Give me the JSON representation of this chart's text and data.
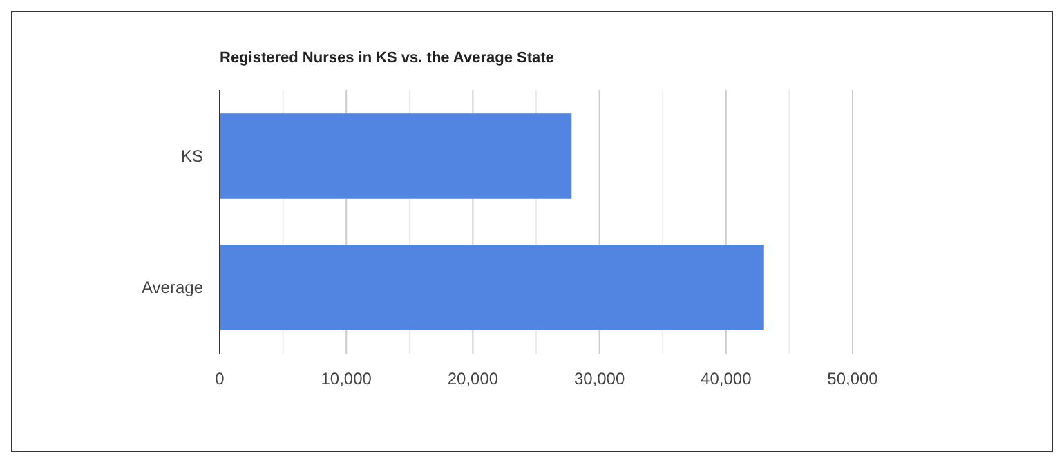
{
  "chart_data": {
    "type": "bar",
    "orientation": "horizontal",
    "title": "Registered Nurses in KS vs. the Average State",
    "categories": [
      "KS",
      "Average"
    ],
    "values": [
      27800,
      43000
    ],
    "color": "#5285e1",
    "xlim": [
      0,
      50000
    ],
    "xticks": [
      0,
      {
        "value": 10000,
        "label": "10,000"
      },
      {
        "value": 20000,
        "label": "20,000"
      },
      {
        "value": 30000,
        "label": "30,000"
      },
      {
        "value": 40000,
        "label": "40,000"
      },
      {
        "value": 50000,
        "label": "50,000"
      }
    ],
    "grid": "x"
  }
}
